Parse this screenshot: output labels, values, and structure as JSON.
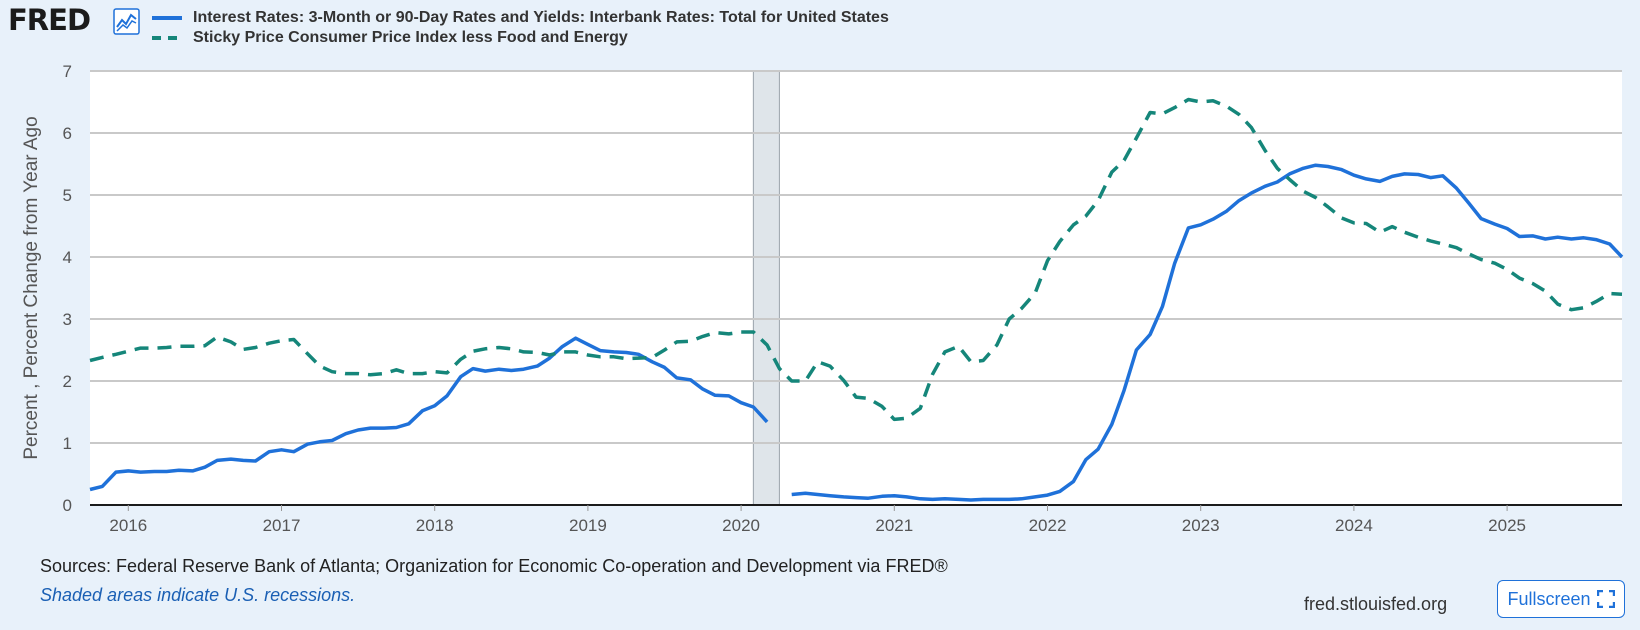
{
  "brand": {
    "logo_text": "FRED"
  },
  "footer": {
    "sources": "Sources: Federal Reserve Bank of Atlanta; Organization for Economic Co-operation and Development via FRED®",
    "recession_note": "Shaded areas indicate U.S. recessions.",
    "site": "fred.stlouisfed.org",
    "fullscreen_label": "Fullscreen"
  },
  "colors": {
    "series1": "#1f71d9",
    "series2": "#15867a",
    "recession": "#dfe5ea"
  },
  "chart_data": {
    "type": "line",
    "title": "",
    "ylabel": "Percent , Percent Change from Year Ago",
    "xlabel": "",
    "ylim": [
      0,
      7
    ],
    "xlim": [
      2015.75,
      2025.75
    ],
    "yticks": [
      "0",
      "1",
      "2",
      "3",
      "4",
      "5",
      "6",
      "7"
    ],
    "xticks": [
      {
        "value": 2016,
        "label": "2016"
      },
      {
        "value": 2017,
        "label": "2017"
      },
      {
        "value": 2018,
        "label": "2018"
      },
      {
        "value": 2019,
        "label": "2019"
      },
      {
        "value": 2020,
        "label": "2020"
      },
      {
        "value": 2021,
        "label": "2021"
      },
      {
        "value": 2022,
        "label": "2022"
      },
      {
        "value": 2023,
        "label": "2023"
      },
      {
        "value": 2024,
        "label": "2024"
      },
      {
        "value": 2025,
        "label": "2025"
      }
    ],
    "recessions": [
      {
        "start": 2020.08,
        "end": 2020.25
      }
    ],
    "series": [
      {
        "name": "Interest Rates: 3-Month or 90-Day Rates and Yields: Interbank Rates: Total for United States",
        "style": "solid",
        "segments": [
          [
            [
              2015.75,
              0.25
            ],
            [
              2015.83,
              0.3
            ],
            [
              2015.92,
              0.53
            ],
            [
              2016.0,
              0.55
            ],
            [
              2016.08,
              0.53
            ],
            [
              2016.17,
              0.54
            ],
            [
              2016.25,
              0.54
            ],
            [
              2016.33,
              0.56
            ],
            [
              2016.42,
              0.55
            ],
            [
              2016.5,
              0.61
            ],
            [
              2016.58,
              0.72
            ],
            [
              2016.67,
              0.74
            ],
            [
              2016.75,
              0.72
            ],
            [
              2016.83,
              0.71
            ],
            [
              2016.92,
              0.86
            ],
            [
              2017.0,
              0.89
            ],
            [
              2017.08,
              0.86
            ],
            [
              2017.17,
              0.98
            ],
            [
              2017.25,
              1.02
            ],
            [
              2017.33,
              1.04
            ],
            [
              2017.42,
              1.15
            ],
            [
              2017.5,
              1.21
            ],
            [
              2017.58,
              1.24
            ],
            [
              2017.67,
              1.24
            ],
            [
              2017.75,
              1.25
            ],
            [
              2017.83,
              1.31
            ],
            [
              2017.92,
              1.52
            ],
            [
              2018.0,
              1.6
            ],
            [
              2018.08,
              1.76
            ],
            [
              2018.17,
              2.07
            ],
            [
              2018.25,
              2.2
            ],
            [
              2018.33,
              2.16
            ],
            [
              2018.42,
              2.19
            ],
            [
              2018.5,
              2.17
            ],
            [
              2018.58,
              2.19
            ],
            [
              2018.67,
              2.24
            ],
            [
              2018.75,
              2.37
            ],
            [
              2018.83,
              2.55
            ],
            [
              2018.92,
              2.69
            ],
            [
              2019.0,
              2.59
            ],
            [
              2019.08,
              2.49
            ],
            [
              2019.17,
              2.47
            ],
            [
              2019.25,
              2.46
            ],
            [
              2019.33,
              2.43
            ],
            [
              2019.42,
              2.31
            ],
            [
              2019.5,
              2.22
            ],
            [
              2019.58,
              2.05
            ],
            [
              2019.67,
              2.02
            ],
            [
              2019.75,
              1.87
            ],
            [
              2019.83,
              1.77
            ],
            [
              2019.92,
              1.76
            ],
            [
              2020.0,
              1.65
            ],
            [
              2020.08,
              1.58
            ],
            [
              2020.17,
              1.34
            ]
          ],
          [
            [
              2020.33,
              0.17
            ],
            [
              2020.42,
              0.19
            ],
            [
              2020.5,
              0.17
            ],
            [
              2020.58,
              0.15
            ],
            [
              2020.67,
              0.13
            ],
            [
              2020.75,
              0.12
            ],
            [
              2020.83,
              0.11
            ],
            [
              2020.92,
              0.14
            ],
            [
              2021.0,
              0.15
            ],
            [
              2021.08,
              0.13
            ],
            [
              2021.17,
              0.1
            ],
            [
              2021.25,
              0.09
            ],
            [
              2021.33,
              0.1
            ],
            [
              2021.42,
              0.09
            ],
            [
              2021.5,
              0.08
            ],
            [
              2021.58,
              0.09
            ],
            [
              2021.67,
              0.09
            ],
            [
              2021.75,
              0.09
            ],
            [
              2021.83,
              0.1
            ],
            [
              2021.92,
              0.13
            ],
            [
              2022.0,
              0.16
            ],
            [
              2022.08,
              0.22
            ],
            [
              2022.17,
              0.38
            ],
            [
              2022.25,
              0.73
            ],
            [
              2022.33,
              0.9
            ],
            [
              2022.42,
              1.3
            ],
            [
              2022.5,
              1.85
            ],
            [
              2022.58,
              2.5
            ],
            [
              2022.67,
              2.75
            ],
            [
              2022.75,
              3.2
            ],
            [
              2022.83,
              3.9
            ],
            [
              2022.92,
              4.47
            ],
            [
              2023.0,
              4.52
            ],
            [
              2023.08,
              4.61
            ],
            [
              2023.17,
              4.74
            ],
            [
              2023.25,
              4.91
            ],
            [
              2023.33,
              5.03
            ],
            [
              2023.42,
              5.14
            ],
            [
              2023.5,
              5.21
            ],
            [
              2023.58,
              5.34
            ],
            [
              2023.67,
              5.43
            ],
            [
              2023.75,
              5.48
            ],
            [
              2023.83,
              5.46
            ],
            [
              2023.92,
              5.41
            ],
            [
              2024.0,
              5.32
            ],
            [
              2024.08,
              5.26
            ],
            [
              2024.17,
              5.22
            ],
            [
              2024.25,
              5.3
            ],
            [
              2024.33,
              5.34
            ],
            [
              2024.42,
              5.33
            ],
            [
              2024.5,
              5.28
            ],
            [
              2024.58,
              5.31
            ],
            [
              2024.67,
              5.11
            ],
            [
              2024.75,
              4.87
            ],
            [
              2024.83,
              4.62
            ],
            [
              2024.92,
              4.53
            ],
            [
              2025.0,
              4.46
            ],
            [
              2025.08,
              4.33
            ],
            [
              2025.17,
              4.34
            ],
            [
              2025.25,
              4.29
            ],
            [
              2025.33,
              4.32
            ],
            [
              2025.42,
              4.29
            ],
            [
              2025.5,
              4.31
            ],
            [
              2025.58,
              4.28
            ],
            [
              2025.67,
              4.21
            ],
            [
              2025.75,
              4.0
            ]
          ]
        ]
      },
      {
        "name": "Sticky Price Consumer Price Index less Food and Energy",
        "style": "dashed",
        "segments": [
          [
            [
              2015.75,
              2.33
            ],
            [
              2015.83,
              2.38
            ],
            [
              2015.92,
              2.43
            ],
            [
              2016.0,
              2.48
            ],
            [
              2016.08,
              2.53
            ],
            [
              2016.17,
              2.53
            ],
            [
              2016.25,
              2.54
            ],
            [
              2016.33,
              2.56
            ],
            [
              2016.42,
              2.56
            ],
            [
              2016.5,
              2.57
            ],
            [
              2016.58,
              2.71
            ],
            [
              2016.67,
              2.63
            ],
            [
              2016.75,
              2.51
            ],
            [
              2016.83,
              2.54
            ],
            [
              2016.92,
              2.61
            ],
            [
              2017.0,
              2.65
            ],
            [
              2017.08,
              2.67
            ],
            [
              2017.17,
              2.44
            ],
            [
              2017.25,
              2.24
            ],
            [
              2017.33,
              2.15
            ],
            [
              2017.42,
              2.12
            ],
            [
              2017.5,
              2.12
            ],
            [
              2017.58,
              2.1
            ],
            [
              2017.67,
              2.12
            ],
            [
              2017.75,
              2.18
            ],
            [
              2017.83,
              2.12
            ],
            [
              2017.92,
              2.12
            ],
            [
              2018.0,
              2.15
            ],
            [
              2018.08,
              2.13
            ],
            [
              2018.17,
              2.35
            ],
            [
              2018.25,
              2.48
            ],
            [
              2018.33,
              2.52
            ],
            [
              2018.42,
              2.54
            ],
            [
              2018.5,
              2.52
            ],
            [
              2018.58,
              2.47
            ],
            [
              2018.67,
              2.46
            ],
            [
              2018.75,
              2.42
            ],
            [
              2018.83,
              2.47
            ],
            [
              2018.92,
              2.47
            ],
            [
              2019.0,
              2.42
            ],
            [
              2019.08,
              2.39
            ],
            [
              2019.17,
              2.39
            ],
            [
              2019.25,
              2.36
            ],
            [
              2019.33,
              2.37
            ],
            [
              2019.42,
              2.38
            ],
            [
              2019.5,
              2.5
            ],
            [
              2019.58,
              2.63
            ],
            [
              2019.67,
              2.64
            ],
            [
              2019.75,
              2.72
            ],
            [
              2019.83,
              2.78
            ],
            [
              2019.92,
              2.76
            ],
            [
              2020.0,
              2.79
            ],
            [
              2020.08,
              2.79
            ],
            [
              2020.17,
              2.58
            ],
            [
              2020.25,
              2.2
            ],
            [
              2020.33,
              2.0
            ],
            [
              2020.42,
              2.0
            ],
            [
              2020.5,
              2.31
            ],
            [
              2020.58,
              2.24
            ],
            [
              2020.67,
              2.01
            ],
            [
              2020.75,
              1.74
            ],
            [
              2020.83,
              1.72
            ],
            [
              2020.92,
              1.59
            ],
            [
              2021.0,
              1.38
            ],
            [
              2021.08,
              1.4
            ],
            [
              2021.17,
              1.56
            ],
            [
              2021.25,
              2.11
            ],
            [
              2021.33,
              2.47
            ],
            [
              2021.42,
              2.56
            ],
            [
              2021.5,
              2.31
            ],
            [
              2021.58,
              2.33
            ],
            [
              2021.67,
              2.58
            ],
            [
              2021.75,
              3.0
            ],
            [
              2021.83,
              3.17
            ],
            [
              2021.92,
              3.42
            ],
            [
              2022.0,
              3.94
            ],
            [
              2022.08,
              4.25
            ],
            [
              2022.17,
              4.52
            ],
            [
              2022.25,
              4.66
            ],
            [
              2022.33,
              4.91
            ],
            [
              2022.42,
              5.37
            ],
            [
              2022.5,
              5.56
            ],
            [
              2022.58,
              5.92
            ],
            [
              2022.67,
              6.33
            ],
            [
              2022.75,
              6.31
            ],
            [
              2022.83,
              6.41
            ],
            [
              2022.92,
              6.54
            ],
            [
              2023.0,
              6.5
            ],
            [
              2023.08,
              6.52
            ],
            [
              2023.17,
              6.43
            ],
            [
              2023.25,
              6.3
            ],
            [
              2023.33,
              6.09
            ],
            [
              2023.42,
              5.72
            ],
            [
              2023.5,
              5.43
            ],
            [
              2023.58,
              5.25
            ],
            [
              2023.67,
              5.06
            ],
            [
              2023.75,
              4.96
            ],
            [
              2023.83,
              4.81
            ],
            [
              2023.92,
              4.63
            ],
            [
              2024.0,
              4.55
            ],
            [
              2024.08,
              4.54
            ],
            [
              2024.17,
              4.4
            ],
            [
              2024.25,
              4.49
            ],
            [
              2024.33,
              4.4
            ],
            [
              2024.42,
              4.32
            ],
            [
              2024.5,
              4.26
            ],
            [
              2024.58,
              4.21
            ],
            [
              2024.67,
              4.15
            ],
            [
              2024.75,
              4.05
            ],
            [
              2024.83,
              3.96
            ],
            [
              2024.92,
              3.9
            ],
            [
              2025.0,
              3.8
            ],
            [
              2025.08,
              3.66
            ],
            [
              2025.17,
              3.57
            ],
            [
              2025.25,
              3.45
            ],
            [
              2025.33,
              3.24
            ],
            [
              2025.42,
              3.15
            ],
            [
              2025.5,
              3.18
            ],
            [
              2025.58,
              3.28
            ],
            [
              2025.67,
              3.41
            ],
            [
              2025.75,
              3.4
            ]
          ]
        ]
      }
    ]
  }
}
